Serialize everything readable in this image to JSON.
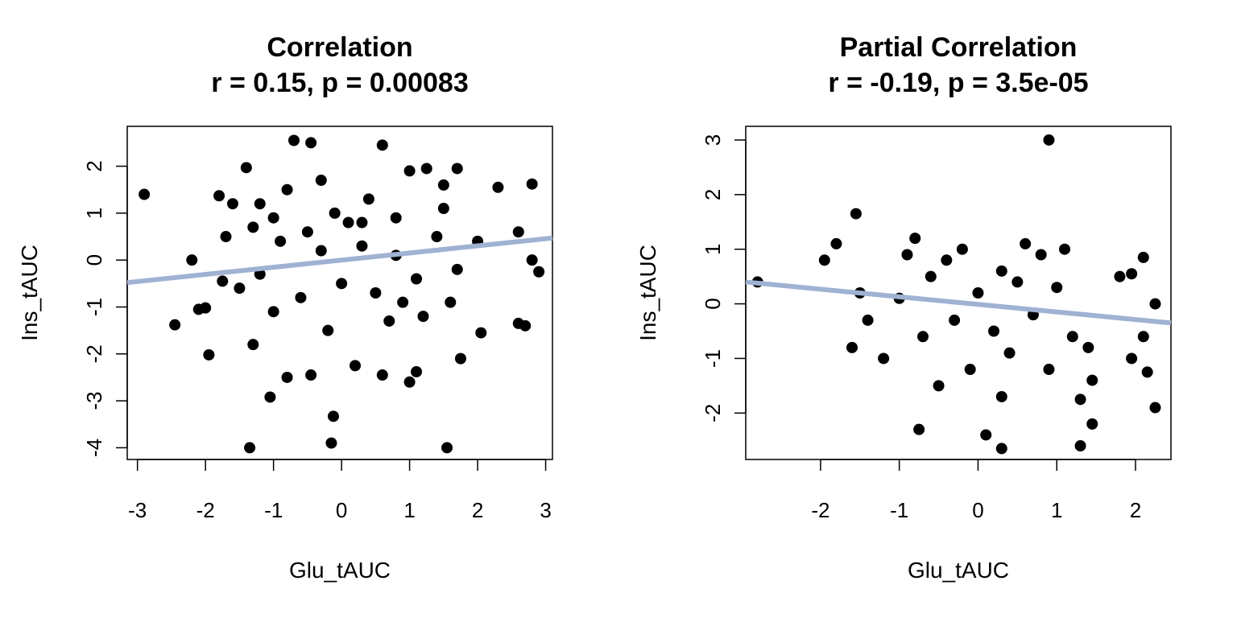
{
  "chart_data": [
    {
      "type": "scatter",
      "title": "Correlation",
      "subtitle": "r = 0.15, p = 0.00083",
      "xlabel": "Glu_tAUC",
      "ylabel": "Ins_tAUC",
      "xlim": [
        -3.15,
        3.1
      ],
      "ylim": [
        -4.25,
        2.85
      ],
      "xticks": [
        -3,
        -2,
        -1,
        0,
        1,
        2,
        3
      ],
      "yticks": [
        -4,
        -3,
        -2,
        -1,
        0,
        1,
        2
      ],
      "grid": false,
      "point_color": "#000000",
      "fit_line": {
        "x": [
          -3.15,
          3.1
        ],
        "y": [
          -0.48,
          0.47
        ],
        "color": "#9fb2d3"
      },
      "points": [
        [
          -2.9,
          1.4
        ],
        [
          -2.45,
          -1.38
        ],
        [
          -2.2,
          0.0
        ],
        [
          -2.1,
          -1.05
        ],
        [
          -2.0,
          -1.02
        ],
        [
          -1.95,
          -2.02
        ],
        [
          -1.8,
          1.37
        ],
        [
          -1.75,
          -0.45
        ],
        [
          -1.7,
          0.5
        ],
        [
          -1.6,
          1.2
        ],
        [
          -1.4,
          1.97
        ],
        [
          -1.35,
          -4.0
        ],
        [
          -1.3,
          -1.8
        ],
        [
          -1.2,
          1.2
        ],
        [
          -1.0,
          0.9
        ],
        [
          -1.05,
          -2.92
        ],
        [
          -0.8,
          -2.5
        ],
        [
          -0.7,
          2.55
        ],
        [
          -0.45,
          2.5
        ],
        [
          -0.45,
          -2.45
        ],
        [
          -0.3,
          1.7
        ],
        [
          -0.15,
          -3.9
        ],
        [
          -0.12,
          -3.33
        ],
        [
          -0.1,
          1.0
        ],
        [
          0.2,
          -2.25
        ],
        [
          0.3,
          0.8
        ],
        [
          0.6,
          2.45
        ],
        [
          0.6,
          -2.45
        ],
        [
          0.8,
          0.9
        ],
        [
          1.0,
          1.9
        ],
        [
          1.0,
          -2.6
        ],
        [
          1.1,
          -2.38
        ],
        [
          1.25,
          1.95
        ],
        [
          1.5,
          1.6
        ],
        [
          1.55,
          -4.0
        ],
        [
          1.6,
          -0.9
        ],
        [
          1.7,
          1.95
        ],
        [
          1.75,
          -2.1
        ],
        [
          2.05,
          -1.55
        ],
        [
          2.3,
          1.55
        ],
        [
          2.6,
          0.6
        ],
        [
          2.6,
          -1.35
        ],
        [
          2.7,
          -1.4
        ],
        [
          2.8,
          1.62
        ],
        [
          2.8,
          0.0
        ],
        [
          2.9,
          -0.25
        ],
        [
          -1.5,
          -0.6
        ],
        [
          -1.2,
          -0.3
        ],
        [
          -0.9,
          0.4
        ],
        [
          -0.6,
          -0.8
        ],
        [
          -0.3,
          0.2
        ],
        [
          0.0,
          -0.5
        ],
        [
          0.3,
          0.3
        ],
        [
          0.5,
          -0.7
        ],
        [
          0.8,
          0.1
        ],
        [
          1.1,
          -0.4
        ],
        [
          1.4,
          0.5
        ],
        [
          1.7,
          -0.2
        ],
        [
          2.0,
          0.4
        ],
        [
          -0.2,
          -1.5
        ],
        [
          0.4,
          1.3
        ],
        [
          -0.8,
          1.5
        ],
        [
          1.2,
          -1.2
        ],
        [
          -1.0,
          -1.1
        ],
        [
          0.1,
          0.8
        ],
        [
          -0.5,
          0.6
        ],
        [
          0.7,
          -1.3
        ],
        [
          1.5,
          1.1
        ],
        [
          -1.3,
          0.7
        ],
        [
          0.9,
          -0.9
        ]
      ]
    },
    {
      "type": "scatter",
      "title": "Partial Correlation",
      "subtitle": "r = -0.19, p = 3.5e-05",
      "xlabel": "Glu_tAUC",
      "ylabel": "Ins_tAUC",
      "xlim": [
        -2.95,
        2.45
      ],
      "ylim": [
        -2.85,
        3.25
      ],
      "xticks": [
        -2,
        -1,
        0,
        1,
        2
      ],
      "yticks": [
        -2,
        -1,
        0,
        1,
        2,
        3
      ],
      "grid": false,
      "point_color": "#000000",
      "fit_line": {
        "x": [
          -2.95,
          2.45
        ],
        "y": [
          0.4,
          -0.35
        ],
        "color": "#9fb2d3"
      },
      "points": [
        [
          -2.8,
          0.4
        ],
        [
          -1.95,
          0.8
        ],
        [
          -1.8,
          1.1
        ],
        [
          -1.55,
          1.65
        ],
        [
          -1.6,
          -0.8
        ],
        [
          -1.5,
          0.2
        ],
        [
          -0.75,
          -2.3
        ],
        [
          0.1,
          -2.4
        ],
        [
          0.3,
          -2.65
        ],
        [
          0.3,
          -1.7
        ],
        [
          0.9,
          3.0
        ],
        [
          1.3,
          -1.75
        ],
        [
          1.3,
          -2.6
        ],
        [
          1.45,
          -2.2
        ],
        [
          1.45,
          -1.4
        ],
        [
          1.8,
          0.5
        ],
        [
          1.95,
          0.55
        ],
        [
          2.1,
          0.85
        ],
        [
          2.1,
          -0.6
        ],
        [
          2.15,
          -1.25
        ],
        [
          2.25,
          0.0
        ],
        [
          2.25,
          -1.9
        ],
        [
          1.95,
          -1.0
        ],
        [
          -0.5,
          -1.5
        ],
        [
          -1.2,
          -1.0
        ],
        [
          -0.9,
          0.9
        ],
        [
          -0.6,
          0.5
        ],
        [
          -0.3,
          -0.3
        ],
        [
          0.0,
          0.2
        ],
        [
          0.2,
          -0.5
        ],
        [
          0.5,
          0.4
        ],
        [
          0.7,
          -0.2
        ],
        [
          1.0,
          0.3
        ],
        [
          1.2,
          -0.6
        ],
        [
          -1.0,
          0.1
        ],
        [
          -0.4,
          0.8
        ],
        [
          0.4,
          -0.9
        ],
        [
          0.8,
          0.9
        ],
        [
          -0.2,
          1.0
        ],
        [
          0.6,
          1.1
        ],
        [
          -0.7,
          -0.6
        ],
        [
          1.1,
          1.0
        ],
        [
          -0.1,
          -1.2
        ],
        [
          1.4,
          -0.8
        ],
        [
          0.3,
          0.6
        ],
        [
          -1.4,
          -0.3
        ],
        [
          0.9,
          -1.2
        ],
        [
          -0.8,
          1.2
        ]
      ]
    }
  ]
}
